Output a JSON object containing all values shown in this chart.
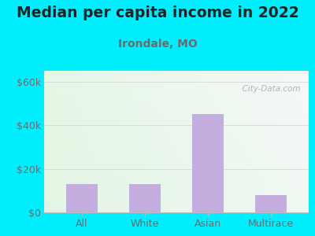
{
  "title": "Median per capita income in 2022",
  "subtitle": "Irondale, MO",
  "categories": [
    "All",
    "White",
    "Asian",
    "Multirace"
  ],
  "values": [
    13000,
    13000,
    45000,
    8000
  ],
  "bar_color": "#c4aee0",
  "title_fontsize": 13.5,
  "subtitle_fontsize": 10,
  "tick_label_fontsize": 9,
  "ytick_labels": [
    "$0",
    "$20k",
    "$40k",
    "$60k"
  ],
  "ytick_values": [
    0,
    20000,
    40000,
    60000
  ],
  "ylim": [
    0,
    65000
  ],
  "bg_outer": "#00efff",
  "title_color": "#222222",
  "subtitle_color": "#6b6b6b",
  "tick_color": "#6b6b6b",
  "watermark": "  City-Data.com",
  "watermark_icon": "⊙",
  "grid_color": "#cccccc"
}
